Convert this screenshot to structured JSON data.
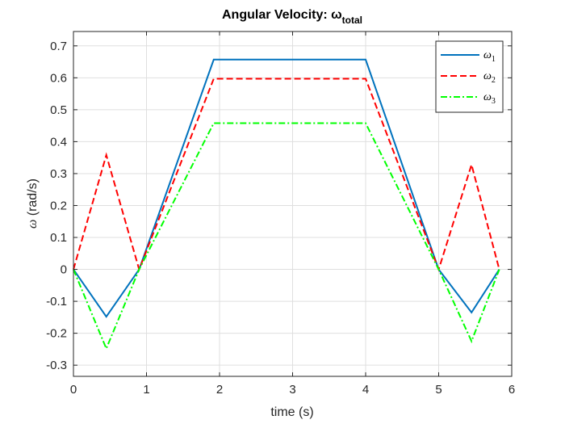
{
  "chart_data": {
    "type": "line",
    "title": "Angular Velocity: ω",
    "title_subscript": "total",
    "xlabel": "time (s)",
    "ylabel_symbol": "ω",
    "ylabel_text": " (rad/s)",
    "xlim": [
      0,
      6
    ],
    "ylim": [
      -0.335,
      0.745
    ],
    "xticks": [
      0,
      1,
      2,
      3,
      4,
      5,
      6
    ],
    "xtick_labels": [
      "0",
      "1",
      "2",
      "3",
      "4",
      "5",
      "6"
    ],
    "yticks": [
      -0.3,
      -0.2,
      -0.1,
      0,
      0.1,
      0.2,
      0.3,
      0.4,
      0.5,
      0.6,
      0.7
    ],
    "ytick_labels": [
      "-0.3",
      "-0.2",
      "-0.1",
      "0",
      "0.1",
      "0.2",
      "0.3",
      "0.4",
      "0.5",
      "0.6",
      "0.7"
    ],
    "grid": true,
    "legend_position": "top-right",
    "series": [
      {
        "name": "ω",
        "subscript": "1",
        "color": "#0072BD",
        "dash": "solid",
        "x": [
          0,
          0.45,
          0.9,
          1.92,
          4.0,
          5.0,
          5.45,
          5.83
        ],
        "y": [
          0,
          -0.148,
          0,
          0.657,
          0.657,
          0,
          -0.135,
          0
        ]
      },
      {
        "name": "ω",
        "subscript": "2",
        "color": "#FF0000",
        "dash": "dashed",
        "x": [
          0,
          0.45,
          0.9,
          1.92,
          4.0,
          5.0,
          5.45,
          5.83
        ],
        "y": [
          0,
          0.358,
          0,
          0.597,
          0.597,
          0,
          0.328,
          0
        ]
      },
      {
        "name": "ω",
        "subscript": "3",
        "color": "#00FF00",
        "dash": "dashdot",
        "x": [
          0,
          0.45,
          0.9,
          1.92,
          4.0,
          5.0,
          5.45,
          5.83
        ],
        "y": [
          0,
          -0.248,
          0,
          0.458,
          0.458,
          0,
          -0.225,
          0
        ]
      }
    ]
  }
}
